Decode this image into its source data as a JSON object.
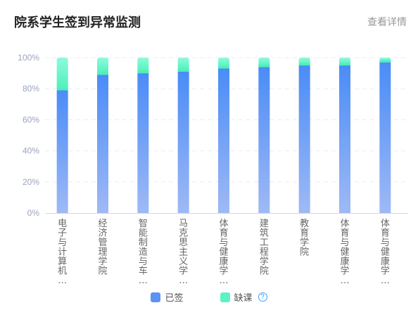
{
  "header": {
    "title": "院系学生签到异常监测",
    "more_label": "查看详情"
  },
  "legend": {
    "signed": {
      "label": "已签",
      "color": "#5b92f3"
    },
    "absent": {
      "label": "缺课",
      "color": "#5df2c4",
      "help_icon": "question-circle-icon"
    }
  },
  "colors": {
    "signed_top": "#4a8cf7",
    "signed_bottom": "#9fb9f5",
    "absent_top": "#8ff9dd",
    "absent_bottom": "#4cf0b8",
    "axis_label": "#9aa3c0",
    "category_label": "#666666",
    "grid": "#e8ecf5"
  },
  "chart_data": {
    "type": "bar",
    "stacked": true,
    "title": "院系学生签到异常监测",
    "categories": [
      "电子与计算机…",
      "经济管理学院",
      "智能制造与车…",
      "马克思主义学…",
      "体育与健康学…",
      "建筑工程学院",
      "教育学院",
      "体育与健康学…",
      "体育与健康学…"
    ],
    "series": [
      {
        "name": "已签",
        "values": [
          79,
          89,
          90,
          91,
          93,
          94,
          95,
          95,
          97
        ]
      },
      {
        "name": "缺课",
        "values": [
          21,
          11,
          10,
          9,
          7,
          6,
          5,
          5,
          3
        ]
      }
    ],
    "ylim": [
      0,
      100
    ],
    "yticks": [
      "0%",
      "20%",
      "40%",
      "60%",
      "80%",
      "100%"
    ],
    "grid": true,
    "legend_position": "bottom"
  }
}
